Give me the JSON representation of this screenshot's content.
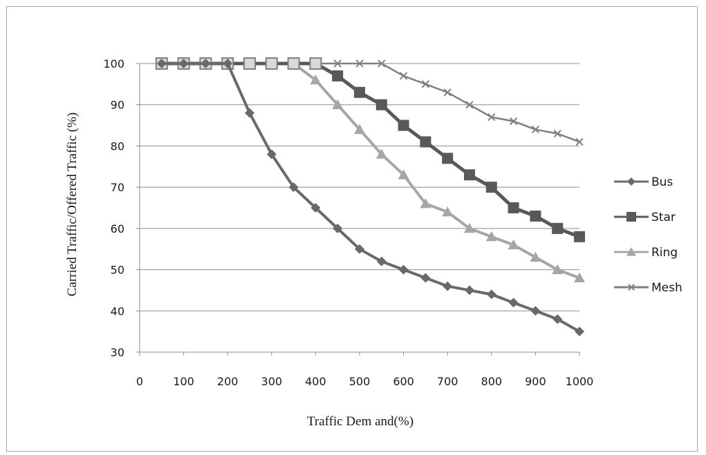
{
  "chart_data": {
    "type": "line",
    "xlabel": "Traffic Dem and(%)",
    "ylabel": "Carried Traffic/Offered Traffic (%)",
    "xlim": [
      0,
      1000
    ],
    "ylim": [
      30,
      100
    ],
    "xticks": [
      0,
      100,
      200,
      300,
      400,
      500,
      600,
      700,
      800,
      900,
      1000
    ],
    "yticks": [
      30,
      40,
      50,
      60,
      70,
      80,
      90,
      100
    ],
    "grid": "horizontal",
    "legend_position": "right",
    "series": [
      {
        "name": "Bus",
        "marker": "diamond",
        "color": "#696969",
        "x": [
          50,
          100,
          150,
          200,
          250,
          300,
          350,
          400,
          450,
          500,
          550,
          600,
          650,
          700,
          750,
          800,
          850,
          900,
          950,
          1000
        ],
        "y": [
          100,
          100,
          100,
          100,
          88,
          78,
          70,
          65,
          60,
          55,
          52,
          50,
          48,
          46,
          45,
          44,
          42,
          40,
          38,
          35
        ]
      },
      {
        "name": "Star",
        "marker": "square",
        "color": "#595959",
        "x": [
          50,
          100,
          150,
          200,
          250,
          300,
          350,
          400,
          450,
          500,
          550,
          600,
          650,
          700,
          750,
          800,
          850,
          900,
          950,
          1000
        ],
        "y": [
          100,
          100,
          100,
          100,
          100,
          100,
          100,
          100,
          97,
          93,
          90,
          85,
          81,
          77,
          73,
          70,
          65,
          63,
          60,
          58
        ]
      },
      {
        "name": "Ring",
        "marker": "triangle",
        "color": "#a6a6a6",
        "x": [
          50,
          100,
          150,
          200,
          250,
          300,
          350,
          400,
          450,
          500,
          550,
          600,
          650,
          700,
          750,
          800,
          850,
          900,
          950,
          1000
        ],
        "y": [
          100,
          100,
          100,
          100,
          100,
          100,
          100,
          96,
          90,
          84,
          78,
          73,
          66,
          64,
          60,
          58,
          56,
          53,
          50,
          48
        ]
      },
      {
        "name": "Mesh",
        "marker": "x",
        "color": "#7f7f7f",
        "x": [
          50,
          100,
          150,
          200,
          250,
          300,
          350,
          400,
          450,
          500,
          550,
          600,
          650,
          700,
          750,
          800,
          850,
          900,
          950,
          1000
        ],
        "y": [
          100,
          100,
          100,
          100,
          100,
          100,
          100,
          100,
          100,
          100,
          100,
          97,
          95,
          93,
          90,
          87,
          86,
          84,
          83,
          81
        ]
      }
    ]
  }
}
